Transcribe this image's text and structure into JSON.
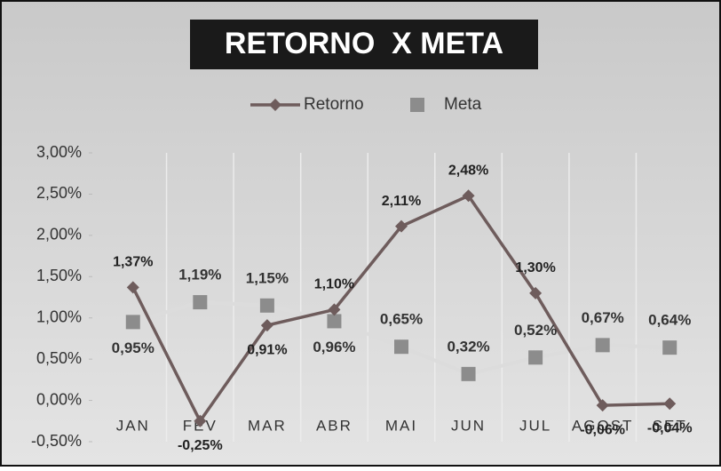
{
  "chart_data": {
    "type": "line",
    "title": "RETORNO  X META",
    "categories": [
      "JAN",
      "FEV",
      "MAR",
      "ABR",
      "MAI",
      "JUN",
      "JUL",
      "AGOST",
      "SET"
    ],
    "series": [
      {
        "name": "Retorno",
        "color": "#6e5c5c",
        "marker": "diamond",
        "values": [
          1.37,
          -0.25,
          0.91,
          1.1,
          2.11,
          2.48,
          1.3,
          -0.06,
          -0.04
        ],
        "value_labels": [
          "1,37%",
          "-0,25%",
          "0,91%",
          "1,10%",
          "2,11%",
          "2,48%",
          "1,30%",
          "-0,06%",
          "-0,04%"
        ]
      },
      {
        "name": "Meta",
        "color": "#8c8c8c",
        "marker": "square",
        "line_color": "#dcdcdc",
        "values": [
          0.95,
          1.19,
          1.15,
          0.96,
          0.65,
          0.32,
          0.52,
          0.67,
          0.64
        ],
        "value_labels": [
          "0,95%",
          "1,19%",
          "1,15%",
          "0,96%",
          "0,65%",
          "0,32%",
          "0,52%",
          "0,67%",
          "0,64%"
        ]
      }
    ],
    "ylim": [
      -0.5,
      3.0
    ],
    "yticks": [
      {
        "value": -0.5,
        "label": "-0,50%"
      },
      {
        "value": 0,
        "label": "0,00%"
      },
      {
        "value": 0.5,
        "label": "0,50%"
      },
      {
        "value": 1.0,
        "label": "1,00%"
      },
      {
        "value": 1.5,
        "label": "1,50%"
      },
      {
        "value": 2.0,
        "label": "2,00%"
      },
      {
        "value": 2.5,
        "label": "2,50%"
      },
      {
        "value": 3.0,
        "label": "3,00%"
      }
    ],
    "legend": "top"
  }
}
